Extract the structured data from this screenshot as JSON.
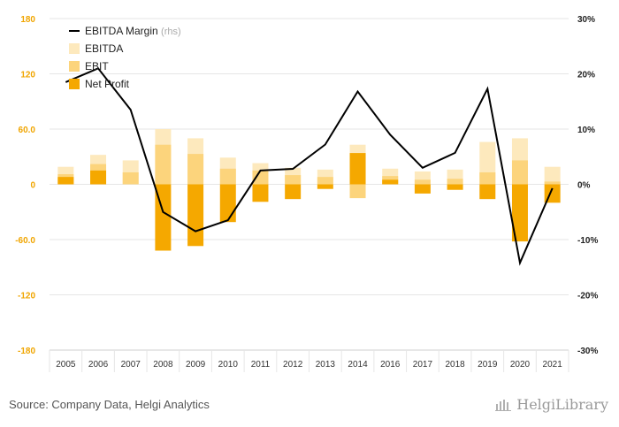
{
  "chart_data": {
    "type": "bar",
    "categories": [
      "2005",
      "2006",
      "2007",
      "2008",
      "2009",
      "2010",
      "2011",
      "2012",
      "2013",
      "2014",
      "2016",
      "2017",
      "2018",
      "2019",
      "2020",
      "2021"
    ],
    "series": [
      {
        "name": "EBITDA",
        "kind": "bar",
        "axis": "left",
        "values": [
          19,
          32,
          26,
          60,
          50,
          29,
          23,
          18,
          16,
          43,
          17,
          14,
          16,
          46,
          50,
          19
        ]
      },
      {
        "name": "EBIT",
        "kind": "bar",
        "axis": "left",
        "values": [
          11,
          22,
          13,
          43,
          33,
          17,
          15,
          10,
          8,
          -15,
          9,
          5,
          6,
          13,
          26,
          3
        ]
      },
      {
        "name": "Net Profit",
        "kind": "bar",
        "axis": "left",
        "values": [
          8,
          15,
          0,
          -72,
          -67,
          -41,
          -19,
          -16,
          -5,
          34,
          5,
          -10,
          -6,
          -16,
          -62,
          -20
        ]
      },
      {
        "name": "EBITDA Margin",
        "unit_label": "(rhs)",
        "kind": "line",
        "axis": "right",
        "values": [
          18.5,
          21.0,
          13.5,
          -5.0,
          -8.5,
          -6.5,
          2.5,
          2.8,
          7.2,
          16.8,
          9.0,
          3.0,
          5.7,
          17.3,
          -14.2,
          -0.7
        ]
      }
    ],
    "left_axis": {
      "ticks": [
        "180",
        "120",
        "60.0",
        "0",
        "-60.0",
        "-120",
        "-180"
      ],
      "values": [
        180,
        120,
        60,
        0,
        -60,
        -120,
        -180
      ],
      "range": [
        -180,
        180
      ]
    },
    "right_axis": {
      "ticks": [
        "30%",
        "20%",
        "10%",
        "0%",
        "-10%",
        "-20%",
        "-30%"
      ],
      "values": [
        30,
        20,
        10,
        0,
        -10,
        -20,
        -30
      ],
      "range": [
        -30,
        30
      ]
    },
    "legend_position": "top-left",
    "grid": true
  },
  "colors": {
    "ebitda": "#fde9bd",
    "ebit": "#fcd47c",
    "net_profit": "#f5a800",
    "line": "#000000",
    "left_tick": "#f0a500",
    "grid": "#e6e6e6",
    "axis": "#cfcfcf"
  },
  "footer": {
    "source": "Source: Company Data, Helgi Analytics",
    "brand": "HelgiLibrary"
  }
}
